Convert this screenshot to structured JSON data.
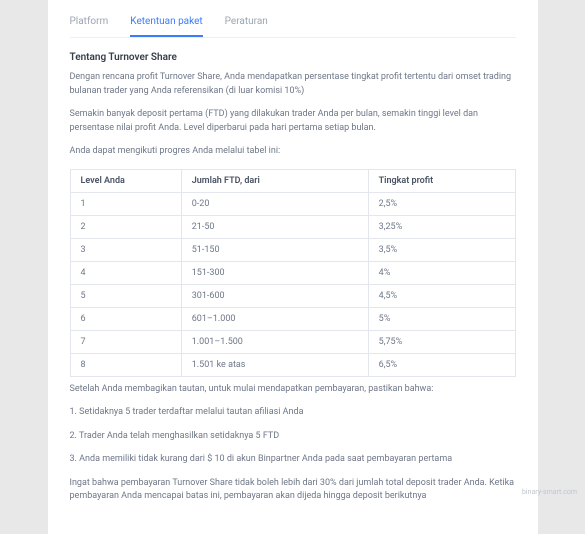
{
  "tabs": {
    "platform": "Platform",
    "ketentuan": "Ketentuan paket",
    "peraturan": "Peraturan"
  },
  "title": "Tentang Turnover Share",
  "p1": "Dengan rencana profit Turnover Share, Anda mendapatkan persentase tingkat profit tertentu dari omset trading bulanan trader yang Anda referensikan (di luar komisi 10%)",
  "p2": "Semakin banyak deposit pertama (FTD) yang dilakukan trader Anda per bulan, semakin tinggi level dan persentase nilai profit Anda. Level diperbarui pada hari pertama setiap bulan.",
  "p3": "Anda dapat mengikuti progres Anda melalui tabel ini:",
  "table": {
    "headers": {
      "c1": "Level Anda",
      "c2": "Jumlah FTD, dari",
      "c3": "Tingkat profit"
    },
    "rows": [
      {
        "c1": "1",
        "c2": "0-20",
        "c3": "2,5%"
      },
      {
        "c1": "2",
        "c2": "21-50",
        "c3": "3,25%"
      },
      {
        "c1": "3",
        "c2": "51-150",
        "c3": "3,5%"
      },
      {
        "c1": "4",
        "c2": "151-300",
        "c3": "4%"
      },
      {
        "c1": "5",
        "c2": "301-600",
        "c3": "4,5%"
      },
      {
        "c1": "6",
        "c2": "601–1.000",
        "c3": "5%"
      },
      {
        "c1": "7",
        "c2": "1.001–1.500",
        "c3": "5,75%"
      },
      {
        "c1": "8",
        "c2": "1.501 ke atas",
        "c3": "6,5%"
      }
    ]
  },
  "after1": "Setelah Anda membagikan tautan, untuk mulai mendapatkan pembayaran, pastikan bahwa:",
  "after2": "1. Setidaknya 5 trader terdaftar melalui tautan afiliasi Anda",
  "after3": "2. Trader Anda telah menghasilkan setidaknya 5 FTD",
  "after4": "3. Anda memiliki tidak kurang dari $ 10 di akun Binpartner Anda pada saat pembayaran pertama",
  "after5": "Ingat bahwa pembayaran Turnover Share tidak boleh lebih dari 30% dari jumlah total deposit trader Anda. Ketika pembayaran Anda mencapai batas ini, pembayaran akan dijeda hingga deposit berikutnya",
  "watermark": "binary-smart.com"
}
